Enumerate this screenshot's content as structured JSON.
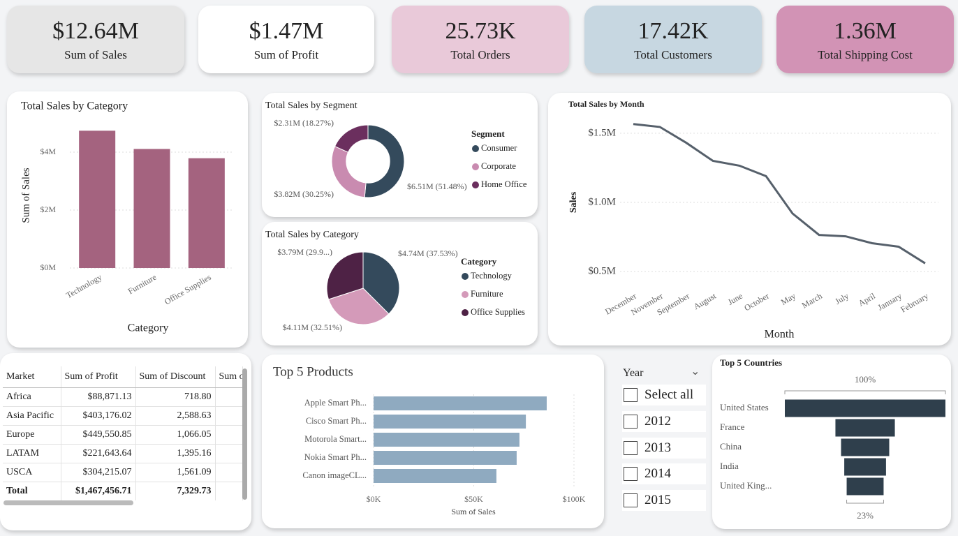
{
  "kpis": [
    {
      "value": "$12.64M",
      "label": "Sum of Sales",
      "color": "#e6e6e6"
    },
    {
      "value": "$1.47M",
      "label": "Sum of Profit",
      "color": "#ffffff"
    },
    {
      "value": "25.73K",
      "label": "Total Orders",
      "color": "#e9c9d9"
    },
    {
      "value": "17.42K",
      "label": "Total Customers",
      "color": "#c7d7e1"
    },
    {
      "value": "1.36M",
      "label": "Total Shipping Cost",
      "color": "#d293b5"
    }
  ],
  "chart_data": [
    {
      "type": "bar",
      "title": "Total Sales by Category",
      "categories": [
        "Technology",
        "Furniture",
        "Office Supplies"
      ],
      "values": [
        4740000,
        4110000,
        3790000
      ],
      "color": "#a4637f",
      "ylim": [
        0,
        5000000
      ],
      "yticks": [
        {
          "value": 0,
          "label": "$0M"
        },
        {
          "value": 2000000,
          "label": "$2M"
        },
        {
          "value": 4000000,
          "label": "$4M"
        }
      ],
      "x_label": "Category",
      "y_label": "Sum of Sales",
      "grid": true
    },
    {
      "type": "donut",
      "title": "Total Sales by Segment",
      "legend_title": "Segment",
      "categories": [
        "Consumer",
        "Corporate",
        "Home Office"
      ],
      "values": [
        6510000,
        3820000,
        2310000
      ],
      "value_labels": [
        "$6.51M (51.48%)",
        "$3.82M (30.25%)",
        "$2.31M (18.27%)"
      ],
      "colors": [
        "#344a5c",
        "#c98bb0",
        "#6b2f5e"
      ]
    },
    {
      "type": "pie",
      "title": "Total Sales by Category",
      "legend_title": "Category",
      "categories": [
        "Technology",
        "Furniture",
        "Office Supplies"
      ],
      "values": [
        4740000,
        4110000,
        3790000
      ],
      "value_labels": [
        "$4.74M (37.53%)",
        "$4.11M (32.51%)",
        "$3.79M (29.9...)"
      ],
      "colors": [
        "#344a5c",
        "#d49ab9",
        "#4e2245"
      ]
    },
    {
      "type": "line",
      "title": "Total Sales by Month",
      "categories": [
        "December",
        "November",
        "September",
        "August",
        "June",
        "October",
        "May",
        "March",
        "July",
        "April",
        "January",
        "February"
      ],
      "values": [
        1566000,
        1545000,
        1430000,
        1300000,
        1265000,
        1190000,
        920000,
        765000,
        755000,
        705000,
        680000,
        560000
      ],
      "color": "#56606b",
      "ylim": [
        400000,
        1600000
      ],
      "yticks": [
        {
          "value": 500000,
          "label": "$0.5M"
        },
        {
          "value": 1000000,
          "label": "$1.0M"
        },
        {
          "value": 1500000,
          "label": "$1.5M"
        }
      ],
      "x_label": "Month",
      "y_label": "Sales",
      "grid": true
    },
    {
      "type": "hbar",
      "title": "Top 5 Products",
      "categories": [
        "Apple Smart Ph...",
        "Cisco Smart Ph...",
        "Motorola Smart...",
        "Nokia Smart Ph...",
        "Canon imageCL..."
      ],
      "values": [
        86400,
        76000,
        72800,
        71400,
        61300
      ],
      "color": "#8faac0",
      "xlim": [
        0,
        100000
      ],
      "xticks": [
        {
          "value": 0,
          "label": "$0K"
        },
        {
          "value": 50000,
          "label": "$50K"
        },
        {
          "value": 100000,
          "label": "$100K"
        }
      ],
      "x_label": "Sum of Sales",
      "grid": true
    },
    {
      "type": "funnel",
      "title": "Top 5 Countries",
      "categories": [
        "United States",
        "France",
        "China",
        "India",
        "United King..."
      ],
      "values": [
        100,
        37,
        30,
        26,
        23
      ],
      "value_labels": [
        "100%",
        null,
        null,
        null,
        "23%"
      ],
      "color": "#2f3f4c"
    }
  ],
  "table": {
    "columns": [
      "Market",
      "Sum of Profit",
      "Sum of Discount",
      "Sum o"
    ],
    "rows": [
      [
        "Africa",
        "$88,871.13",
        "718.80"
      ],
      [
        "Asia Pacific",
        "$403,176.02",
        "2,588.63"
      ],
      [
        "Europe",
        "$449,550.85",
        "1,066.05"
      ],
      [
        "LATAM",
        "$221,643.64",
        "1,395.16"
      ],
      [
        "USCA",
        "$304,215.07",
        "1,561.09"
      ],
      [
        "Total",
        "$1,467,456.71",
        "7,329.73"
      ]
    ]
  },
  "slicer": {
    "title": "Year",
    "items": [
      "Select all",
      "2012",
      "2013",
      "2014",
      "2015"
    ]
  }
}
